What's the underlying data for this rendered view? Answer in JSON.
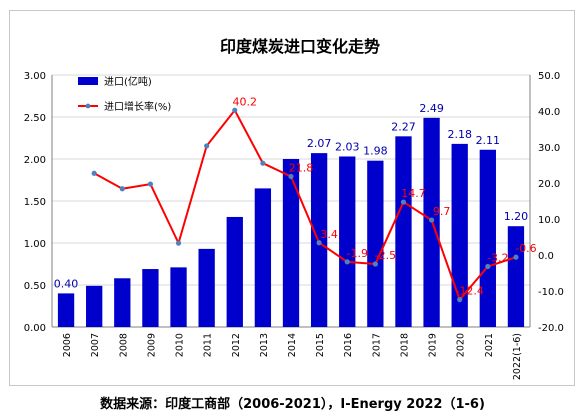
{
  "chart_data": {
    "type": "bar",
    "title": "印度煤炭进口变化走势",
    "categories": [
      "2006",
      "2007",
      "2008",
      "2009",
      "2010",
      "2011",
      "2012",
      "2013",
      "2014",
      "2015",
      "2016",
      "2017",
      "2018",
      "2019",
      "2020",
      "2021",
      "2022(1-6)"
    ],
    "series": [
      {
        "name": "进口(亿吨)",
        "kind": "bar",
        "axis": "left",
        "color": "#0000cc",
        "values": [
          0.4,
          0.49,
          0.58,
          0.69,
          0.71,
          0.93,
          1.31,
          1.65,
          2.0,
          2.07,
          2.03,
          1.98,
          2.27,
          2.49,
          2.18,
          2.11,
          1.2
        ],
        "labels": [
          "0.40",
          "",
          "",
          "",
          "",
          "",
          "",
          "",
          "",
          "2.07",
          "2.03",
          "1.98",
          "2.27",
          "2.49",
          "2.18",
          "2.11",
          "1.20"
        ]
      },
      {
        "name": "进口增长率(%)",
        "kind": "line",
        "axis": "right",
        "color": "#ff0000",
        "marker_color": "#4f81bd",
        "values": [
          null,
          22.7,
          18.4,
          19.7,
          3.3,
          30.3,
          40.2,
          25.5,
          21.8,
          3.4,
          -1.9,
          -2.5,
          14.7,
          9.7,
          -12.4,
          -3.2,
          -0.6
        ],
        "labels": [
          "",
          "",
          "",
          "",
          "",
          "",
          "40.2",
          "",
          "21.8",
          "3.4",
          "-1.9",
          "-2.5",
          "14.7",
          "9.7",
          "-12.4",
          "-3.2",
          "-0.6"
        ]
      }
    ],
    "left_axis": {
      "min": 0,
      "max": 3,
      "step": 0.5,
      "ticks": [
        "0.00",
        "0.50",
        "1.00",
        "1.50",
        "2.00",
        "2.50",
        "3.00"
      ]
    },
    "right_axis": {
      "min": -20,
      "max": 50,
      "step": 10,
      "ticks": [
        "-20.0",
        "-10.0",
        "0.0",
        "10.0",
        "20.0",
        "30.0",
        "40.0",
        "50.0"
      ]
    },
    "grid": true,
    "legend": "top-left"
  },
  "source_text": "数据来源：印度工商部（2006-2021），I-Energy 2022（1-6)"
}
